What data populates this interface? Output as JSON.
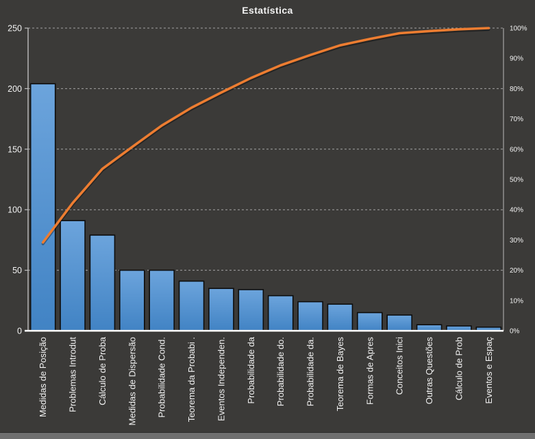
{
  "chart_data": {
    "type": "bar",
    "subtype": "pareto",
    "title": "Estatística",
    "categories": [
      "Medidas de Posição",
      "Problemas Introdut",
      "Cálculo de Proba",
      "Medidas de Dispersão",
      "Probabilidade Cond.",
      "Teorema da Probabi .",
      "Eventos Independen.",
      "Probabilidade da",
      "Probabilidade do.",
      "Probabilidade da.",
      "Teorema de Bayes",
      "Formas de Apres",
      "Conceitos Inici",
      "Outras Questões",
      "Cálculo de Prob",
      "Eventos e Espaç"
    ],
    "series": [
      {
        "kind": "bar",
        "axis": "left",
        "values": [
          204,
          91,
          79,
          50,
          50,
          41,
          35,
          34,
          29,
          24,
          22,
          15,
          13,
          5,
          4,
          3
        ]
      },
      {
        "kind": "line",
        "axis": "right",
        "cumulative_percent": [
          29.2,
          42.2,
          53.5,
          60.7,
          67.8,
          73.7,
          78.7,
          83.5,
          87.7,
          91.1,
          94.3,
          96.4,
          98.3,
          99.0,
          99.6,
          100.0
        ]
      }
    ],
    "left_axis": {
      "min": 0,
      "max": 250,
      "ticks": [
        0,
        50,
        100,
        150,
        200,
        250
      ]
    },
    "right_axis": {
      "ticks": [
        "0%",
        "10%",
        "20%",
        "30%",
        "40%",
        "50%",
        "60%",
        "70%",
        "80%",
        "90%",
        "100%"
      ]
    },
    "grid": {
      "horizontal": true,
      "style": "dashed",
      "at_left_values": [
        50,
        100,
        150,
        200,
        250
      ]
    },
    "legend": "none",
    "colors": {
      "background": "#3B3A38",
      "bar_fill_top": "#6CA4DC",
      "bar_fill_bottom": "#4183C4",
      "bar_border": "#0D0D0D",
      "line": "#ED7D31",
      "gridline": "#C8C8C8",
      "axis_left_line": "#BFBFBF",
      "axis_right_line": "#A6A6A6",
      "axis_baseline": "#FFFFFF",
      "text": "#F2F2F2",
      "window_bottom_strip": "#6F6F6F"
    }
  }
}
